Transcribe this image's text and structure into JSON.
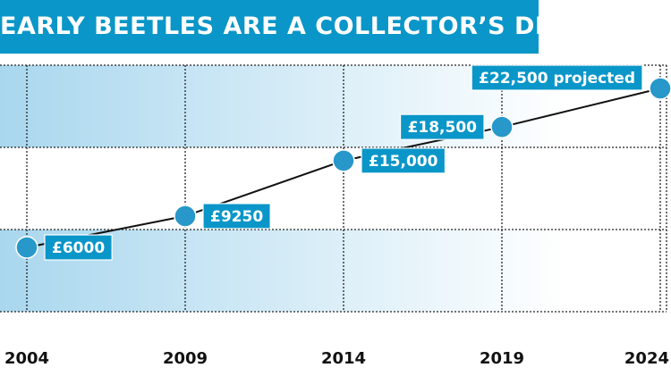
{
  "title": "EARLY BEETLES ARE A COLLECTOR’S DREAM!",
  "colors": {
    "banner": "#0a96c8",
    "band_dark": "#a9d7ee",
    "marker": "#2897c9",
    "label_bg": "#0a96c8",
    "line": "#111111"
  },
  "chart_data": {
    "type": "line",
    "title": "EARLY BEETLES ARE A COLLECTOR’S DREAM!",
    "xlabel": "",
    "ylabel": "",
    "x": [
      2004,
      2009,
      2014,
      2019,
      2024
    ],
    "x_tick_labels": [
      "2004",
      "2009",
      "2014",
      "2019",
      "2024"
    ],
    "values": [
      6000,
      9250,
      15000,
      18500,
      22500
    ],
    "data_labels": [
      "£6000",
      "£9250",
      "£15,000",
      "£18,500",
      "£22,500 projected"
    ],
    "y_axis_labels_visible": false,
    "grid": true,
    "legend": "none"
  }
}
